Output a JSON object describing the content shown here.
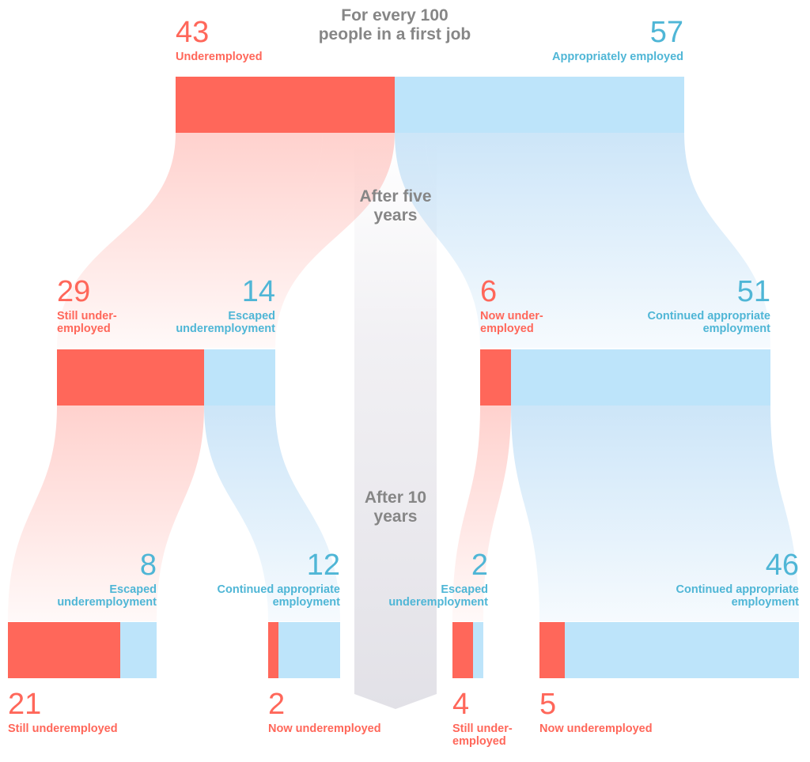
{
  "intro": {
    "line1": "For every 100",
    "line2": "people in a first job"
  },
  "stage_labels": {
    "five": [
      "After five",
      "years"
    ],
    "ten": [
      "After 10",
      "years"
    ]
  },
  "colors": {
    "under": "#ff675a",
    "appropriate": "#bde4fa",
    "appropriate_text": "#4fb6d6",
    "stage_text": "#868686"
  },
  "levels": {
    "first_job": {
      "underemployed": {
        "value": "43",
        "label": "Underemployed"
      },
      "appropriate": {
        "value": "57",
        "label": "Appropriately employed"
      }
    },
    "after_five": {
      "from_under": {
        "stayed": {
          "value": "29",
          "label": [
            "Still under-",
            "employed"
          ]
        },
        "moved": {
          "value": "14",
          "label": [
            "Escaped",
            "underemployment"
          ]
        }
      },
      "from_appropriate": {
        "moved": {
          "value": "6",
          "label": [
            "Now under-",
            "employed"
          ]
        },
        "stayed": {
          "value": "51",
          "label": [
            "Continued appropriate",
            "employment"
          ]
        }
      }
    },
    "after_ten": [
      {
        "under": {
          "value": "21",
          "label": "Still underemployed"
        },
        "appropriate": {
          "value": "8",
          "label": [
            "Escaped",
            "underemployment"
          ]
        }
      },
      {
        "under": {
          "value": "2",
          "label": "Now underemployed"
        },
        "appropriate": {
          "value": "12",
          "label": [
            "Continued appropriate",
            "employment"
          ]
        }
      },
      {
        "under": {
          "value": "4",
          "label": [
            "Still under-",
            "employed"
          ]
        },
        "appropriate": {
          "value": "2",
          "label": [
            "Escaped",
            "underemployment"
          ]
        }
      },
      {
        "under": {
          "value": "5",
          "label": "Now underemployed"
        },
        "appropriate": {
          "value": "46",
          "label": [
            "Continued appropriate",
            "employment"
          ]
        }
      }
    ]
  }
}
